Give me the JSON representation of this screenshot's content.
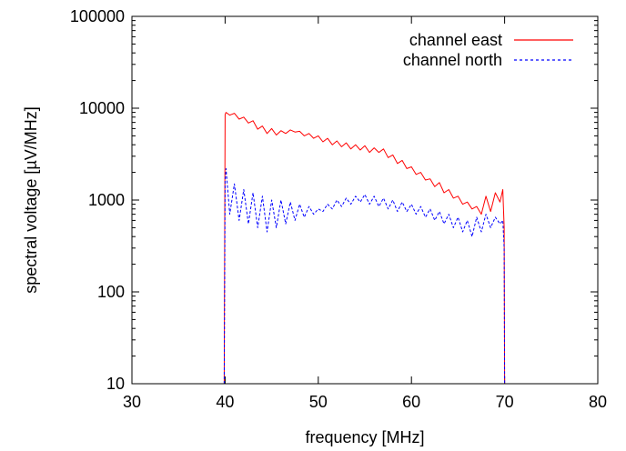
{
  "chart_data": {
    "type": "line",
    "xlabel": "frequency [MHz]",
    "ylabel": "spectral voltage [µV/MHz]",
    "xlim": [
      30,
      80
    ],
    "ylim": [
      10,
      100000
    ],
    "y_scale": "log",
    "x_ticks": [
      30,
      40,
      50,
      60,
      70,
      80
    ],
    "y_ticks": [
      10,
      100,
      1000,
      10000,
      100000
    ],
    "x_tick_labels": [
      "30",
      "40",
      "50",
      "60",
      "70",
      "80"
    ],
    "y_tick_labels": [
      "10",
      "100",
      "1000",
      "10000",
      "100000"
    ],
    "grid": false,
    "legend_position": "top-right",
    "series": [
      {
        "name": "channel east",
        "color": "#ff0000",
        "dash": "solid",
        "x": [
          39.9,
          40.0,
          40.1,
          40.5,
          41.0,
          41.5,
          42.0,
          42.5,
          43.0,
          43.5,
          44.0,
          44.5,
          45.0,
          45.5,
          46.0,
          46.5,
          47.0,
          47.5,
          48.0,
          48.5,
          49.0,
          49.5,
          50.0,
          50.5,
          51.0,
          51.5,
          52.0,
          52.5,
          53.0,
          53.5,
          54.0,
          54.5,
          55.0,
          55.5,
          56.0,
          56.5,
          57.0,
          57.5,
          58.0,
          58.5,
          59.0,
          59.5,
          60.0,
          60.5,
          61.0,
          61.5,
          62.0,
          62.5,
          63.0,
          63.5,
          64.0,
          64.5,
          65.0,
          65.5,
          66.0,
          66.5,
          67.0,
          67.5,
          68.0,
          68.5,
          69.0,
          69.5,
          69.8,
          69.95,
          70.0
        ],
        "y": [
          10,
          8500,
          9000,
          8400,
          8800,
          7600,
          8000,
          6900,
          7300,
          5900,
          6400,
          5300,
          6000,
          5100,
          5700,
          5300,
          5800,
          5500,
          5600,
          5000,
          5300,
          4700,
          5000,
          4300,
          4700,
          4000,
          4400,
          3800,
          4200,
          3600,
          4000,
          3500,
          3900,
          3300,
          3700,
          3300,
          3600,
          2900,
          3100,
          2500,
          2700,
          2200,
          2300,
          1900,
          2000,
          1650,
          1700,
          1400,
          1550,
          1200,
          1300,
          1050,
          1100,
          900,
          950,
          800,
          850,
          700,
          1100,
          750,
          1200,
          950,
          1300,
          500,
          10
        ]
      },
      {
        "name": "channel north",
        "color": "#0000ff",
        "dash": "dotted",
        "x": [
          39.9,
          40.0,
          40.1,
          40.5,
          41.0,
          41.5,
          42.0,
          42.5,
          43.0,
          43.5,
          44.0,
          44.5,
          45.0,
          45.5,
          46.0,
          46.5,
          47.0,
          47.5,
          48.0,
          48.5,
          49.0,
          49.5,
          50.0,
          50.5,
          51.0,
          51.5,
          52.0,
          52.5,
          53.0,
          53.5,
          54.0,
          54.5,
          55.0,
          55.5,
          56.0,
          56.5,
          57.0,
          57.5,
          58.0,
          58.5,
          59.0,
          59.5,
          60.0,
          60.5,
          61.0,
          61.5,
          62.0,
          62.5,
          63.0,
          63.5,
          64.0,
          64.5,
          65.0,
          65.5,
          66.0,
          66.5,
          67.0,
          67.5,
          68.0,
          68.5,
          69.0,
          69.5,
          69.8,
          69.95,
          70.0
        ],
        "y": [
          10,
          1600,
          2200,
          700,
          1500,
          600,
          1300,
          550,
          1200,
          500,
          1100,
          450,
          1000,
          500,
          1000,
          550,
          950,
          600,
          900,
          650,
          850,
          700,
          800,
          750,
          900,
          800,
          1000,
          850,
          1050,
          900,
          1100,
          950,
          1150,
          900,
          1100,
          850,
          1050,
          800,
          1000,
          750,
          950,
          750,
          900,
          700,
          850,
          650,
          800,
          600,
          750,
          550,
          700,
          500,
          650,
          450,
          600,
          400,
          650,
          450,
          700,
          500,
          650,
          550,
          600,
          300,
          10
        ]
      }
    ]
  }
}
